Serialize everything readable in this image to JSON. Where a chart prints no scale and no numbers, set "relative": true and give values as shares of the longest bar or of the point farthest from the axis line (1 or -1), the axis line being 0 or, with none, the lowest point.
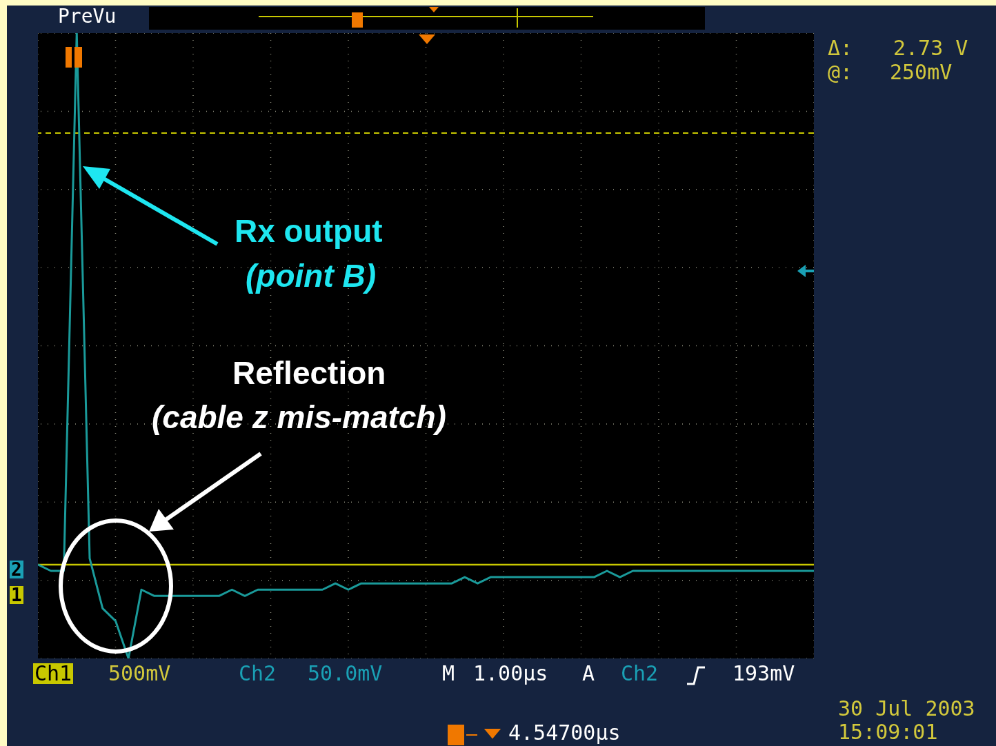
{
  "chart_data": {
    "type": "line",
    "relative": true,
    "grid": true,
    "categories": [
      null,
      null,
      null,
      null,
      null,
      null,
      null,
      null,
      null,
      null,
      null,
      null,
      null,
      null,
      null,
      null,
      null,
      null,
      null,
      null,
      null,
      null,
      null,
      null,
      null,
      null,
      null,
      null,
      null,
      null,
      null,
      null,
      null,
      null,
      null,
      null,
      null,
      null,
      null,
      null,
      null,
      null,
      null,
      null,
      null,
      null,
      null,
      null,
      null,
      null,
      null,
      null,
      null,
      null,
      null,
      null,
      null,
      null,
      null,
      null,
      null
    ],
    "series": [
      {
        "color": "#c8c800",
        "values": [
          0.15,
          0.15,
          0.15,
          0.15,
          0.15,
          0.15,
          0.15,
          0.15,
          0.15,
          0.15,
          0.15,
          0.15,
          0.15,
          0.15,
          0.15,
          0.15,
          0.15,
          0.15,
          0.15,
          0.15,
          0.15,
          0.15,
          0.15,
          0.15,
          0.15,
          0.15,
          0.15,
          0.15,
          0.15,
          0.15,
          0.15,
          0.15,
          0.15,
          0.15,
          0.15,
          0.15,
          0.15,
          0.15,
          0.15,
          0.15,
          0.15,
          0.15,
          0.15,
          0.15,
          0.15,
          0.15,
          0.15,
          0.15,
          0.15,
          0.15,
          0.15,
          0.15,
          0.15,
          0.15,
          0.15,
          0.15,
          0.15,
          0.15,
          0.15,
          0.15,
          0.15
        ]
      },
      {
        "color": "#1a9a9a",
        "values": [
          0.15,
          0.14,
          0.14,
          1.0,
          0.16,
          0.08,
          0.06,
          0.0,
          0.11,
          0.1,
          0.1,
          0.1,
          0.1,
          0.1,
          0.1,
          0.11,
          0.1,
          0.11,
          0.11,
          0.11,
          0.11,
          0.11,
          0.11,
          0.12,
          0.11,
          0.12,
          0.12,
          0.12,
          0.12,
          0.12,
          0.12,
          0.12,
          0.12,
          0.13,
          0.12,
          0.13,
          0.13,
          0.13,
          0.13,
          0.13,
          0.13,
          0.13,
          0.13,
          0.13,
          0.14,
          0.13,
          0.14,
          0.14,
          0.14,
          0.14,
          0.14,
          0.14,
          0.14,
          0.14,
          0.14,
          0.14,
          0.14,
          0.14,
          0.14,
          0.14,
          0.14
        ]
      }
    ],
    "ref_lines": [
      {
        "axis": "y",
        "value": 0.84,
        "color": "#c8c800",
        "line_style": "dashed"
      }
    ],
    "annotations": [
      "PreVu",
      "Δ:",
      "2.73 V",
      "@:",
      "250mV",
      "Rx output",
      "(point B)",
      "Reflection",
      "(cable z mis-match)",
      "Ch1",
      "500mV",
      "Ch2",
      "50.0mV",
      "M",
      "1.00µs",
      "A",
      "Ch2",
      "193mV",
      "4.54700µs",
      "30 Jul  2003",
      "15:09:01",
      "2",
      "1"
    ]
  }
}
